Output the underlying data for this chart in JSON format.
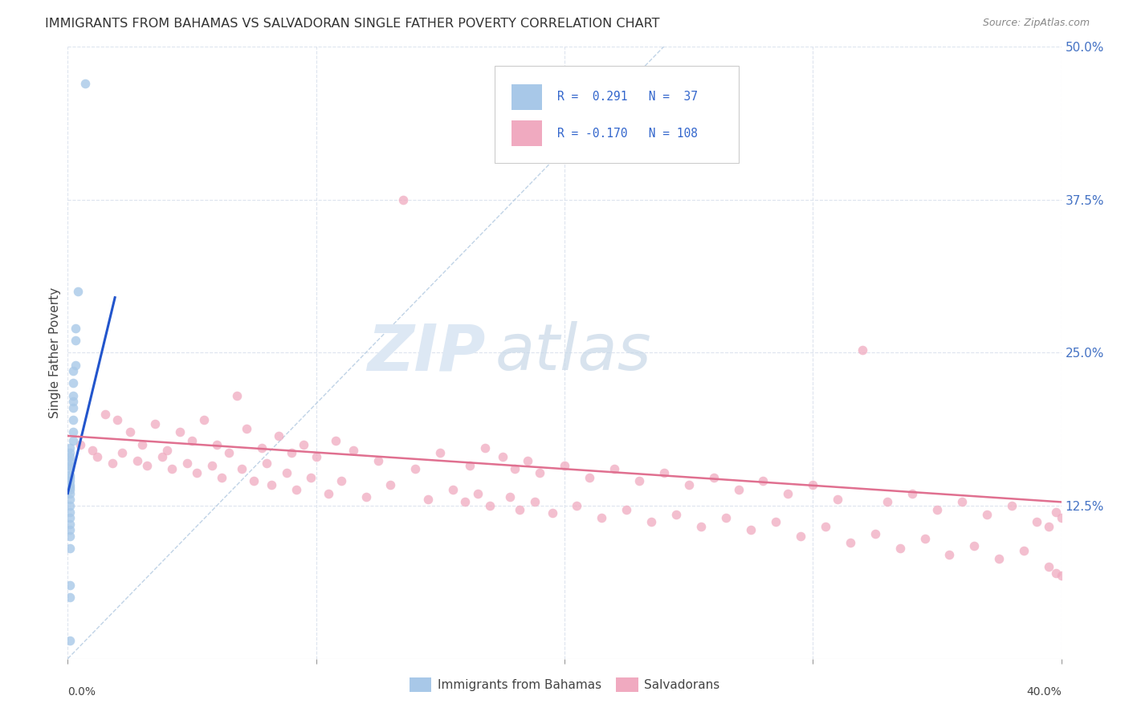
{
  "title": "IMMIGRANTS FROM BAHAMAS VS SALVADORAN SINGLE FATHER POVERTY CORRELATION CHART",
  "source": "Source: ZipAtlas.com",
  "ylabel": "Single Father Poverty",
  "right_yticks": [
    "50.0%",
    "37.5%",
    "25.0%",
    "12.5%"
  ],
  "right_ytick_vals": [
    0.5,
    0.375,
    0.25,
    0.125
  ],
  "bahamas_color": "#a8c8e8",
  "salvadoran_color": "#f0aac0",
  "bahamas_line_color": "#2255cc",
  "salvadoran_line_color": "#e07090",
  "dashed_line_color": "#b0c8e0",
  "grid_color": "#dde4ee",
  "watermark_color": "#dde8f4",
  "xlim": [
    0.0,
    0.4
  ],
  "ylim": [
    0.0,
    0.5
  ],
  "bahamas_x": [
    0.007,
    0.004,
    0.003,
    0.003,
    0.003,
    0.002,
    0.002,
    0.002,
    0.002,
    0.002,
    0.002,
    0.002,
    0.002,
    0.001,
    0.001,
    0.001,
    0.001,
    0.001,
    0.001,
    0.001,
    0.001,
    0.001,
    0.001,
    0.001,
    0.001,
    0.001,
    0.001,
    0.001,
    0.001,
    0.001,
    0.001,
    0.001,
    0.001,
    0.001,
    0.001,
    0.001,
    0.001
  ],
  "bahamas_y": [
    0.47,
    0.3,
    0.27,
    0.26,
    0.24,
    0.235,
    0.225,
    0.215,
    0.21,
    0.205,
    0.195,
    0.185,
    0.178,
    0.172,
    0.168,
    0.165,
    0.162,
    0.158,
    0.155,
    0.15,
    0.148,
    0.145,
    0.142,
    0.14,
    0.138,
    0.135,
    0.13,
    0.125,
    0.12,
    0.115,
    0.11,
    0.105,
    0.1,
    0.09,
    0.06,
    0.05,
    0.015
  ],
  "salvadoran_x": [
    0.005,
    0.01,
    0.012,
    0.015,
    0.018,
    0.02,
    0.022,
    0.025,
    0.028,
    0.03,
    0.032,
    0.035,
    0.038,
    0.04,
    0.042,
    0.045,
    0.048,
    0.05,
    0.052,
    0.055,
    0.058,
    0.06,
    0.062,
    0.065,
    0.068,
    0.07,
    0.072,
    0.075,
    0.078,
    0.08,
    0.082,
    0.085,
    0.088,
    0.09,
    0.092,
    0.095,
    0.098,
    0.1,
    0.105,
    0.108,
    0.11,
    0.115,
    0.12,
    0.125,
    0.13,
    0.135,
    0.14,
    0.145,
    0.15,
    0.155,
    0.16,
    0.162,
    0.165,
    0.168,
    0.17,
    0.175,
    0.178,
    0.18,
    0.182,
    0.185,
    0.188,
    0.19,
    0.195,
    0.2,
    0.205,
    0.21,
    0.215,
    0.22,
    0.225,
    0.23,
    0.235,
    0.24,
    0.245,
    0.25,
    0.255,
    0.26,
    0.265,
    0.27,
    0.275,
    0.28,
    0.285,
    0.29,
    0.295,
    0.3,
    0.305,
    0.31,
    0.315,
    0.32,
    0.325,
    0.33,
    0.335,
    0.34,
    0.345,
    0.35,
    0.355,
    0.36,
    0.365,
    0.37,
    0.375,
    0.38,
    0.385,
    0.39,
    0.395,
    0.398,
    0.4,
    0.4,
    0.398,
    0.395
  ],
  "salvadoran_y": [
    0.175,
    0.17,
    0.165,
    0.2,
    0.16,
    0.195,
    0.168,
    0.185,
    0.162,
    0.175,
    0.158,
    0.192,
    0.165,
    0.17,
    0.155,
    0.185,
    0.16,
    0.178,
    0.152,
    0.195,
    0.158,
    0.175,
    0.148,
    0.168,
    0.215,
    0.155,
    0.188,
    0.145,
    0.172,
    0.16,
    0.142,
    0.182,
    0.152,
    0.168,
    0.138,
    0.175,
    0.148,
    0.165,
    0.135,
    0.178,
    0.145,
    0.17,
    0.132,
    0.162,
    0.142,
    0.375,
    0.155,
    0.13,
    0.168,
    0.138,
    0.128,
    0.158,
    0.135,
    0.172,
    0.125,
    0.165,
    0.132,
    0.155,
    0.122,
    0.162,
    0.128,
    0.152,
    0.119,
    0.158,
    0.125,
    0.148,
    0.115,
    0.155,
    0.122,
    0.145,
    0.112,
    0.152,
    0.118,
    0.142,
    0.108,
    0.148,
    0.115,
    0.138,
    0.105,
    0.145,
    0.112,
    0.135,
    0.1,
    0.142,
    0.108,
    0.13,
    0.095,
    0.252,
    0.102,
    0.128,
    0.09,
    0.135,
    0.098,
    0.122,
    0.085,
    0.128,
    0.092,
    0.118,
    0.082,
    0.125,
    0.088,
    0.112,
    0.075,
    0.12,
    0.068,
    0.115,
    0.07,
    0.108
  ],
  "bah_line_x0": 0.0,
  "bah_line_y0": 0.135,
  "bah_line_x1": 0.019,
  "bah_line_y1": 0.295,
  "sal_line_x0": 0.0,
  "sal_line_y0": 0.182,
  "sal_line_x1": 0.4,
  "sal_line_y1": 0.128,
  "dash_line_x0": 0.0,
  "dash_line_y0": 0.0,
  "dash_line_x1": 0.24,
  "dash_line_y1": 0.5
}
